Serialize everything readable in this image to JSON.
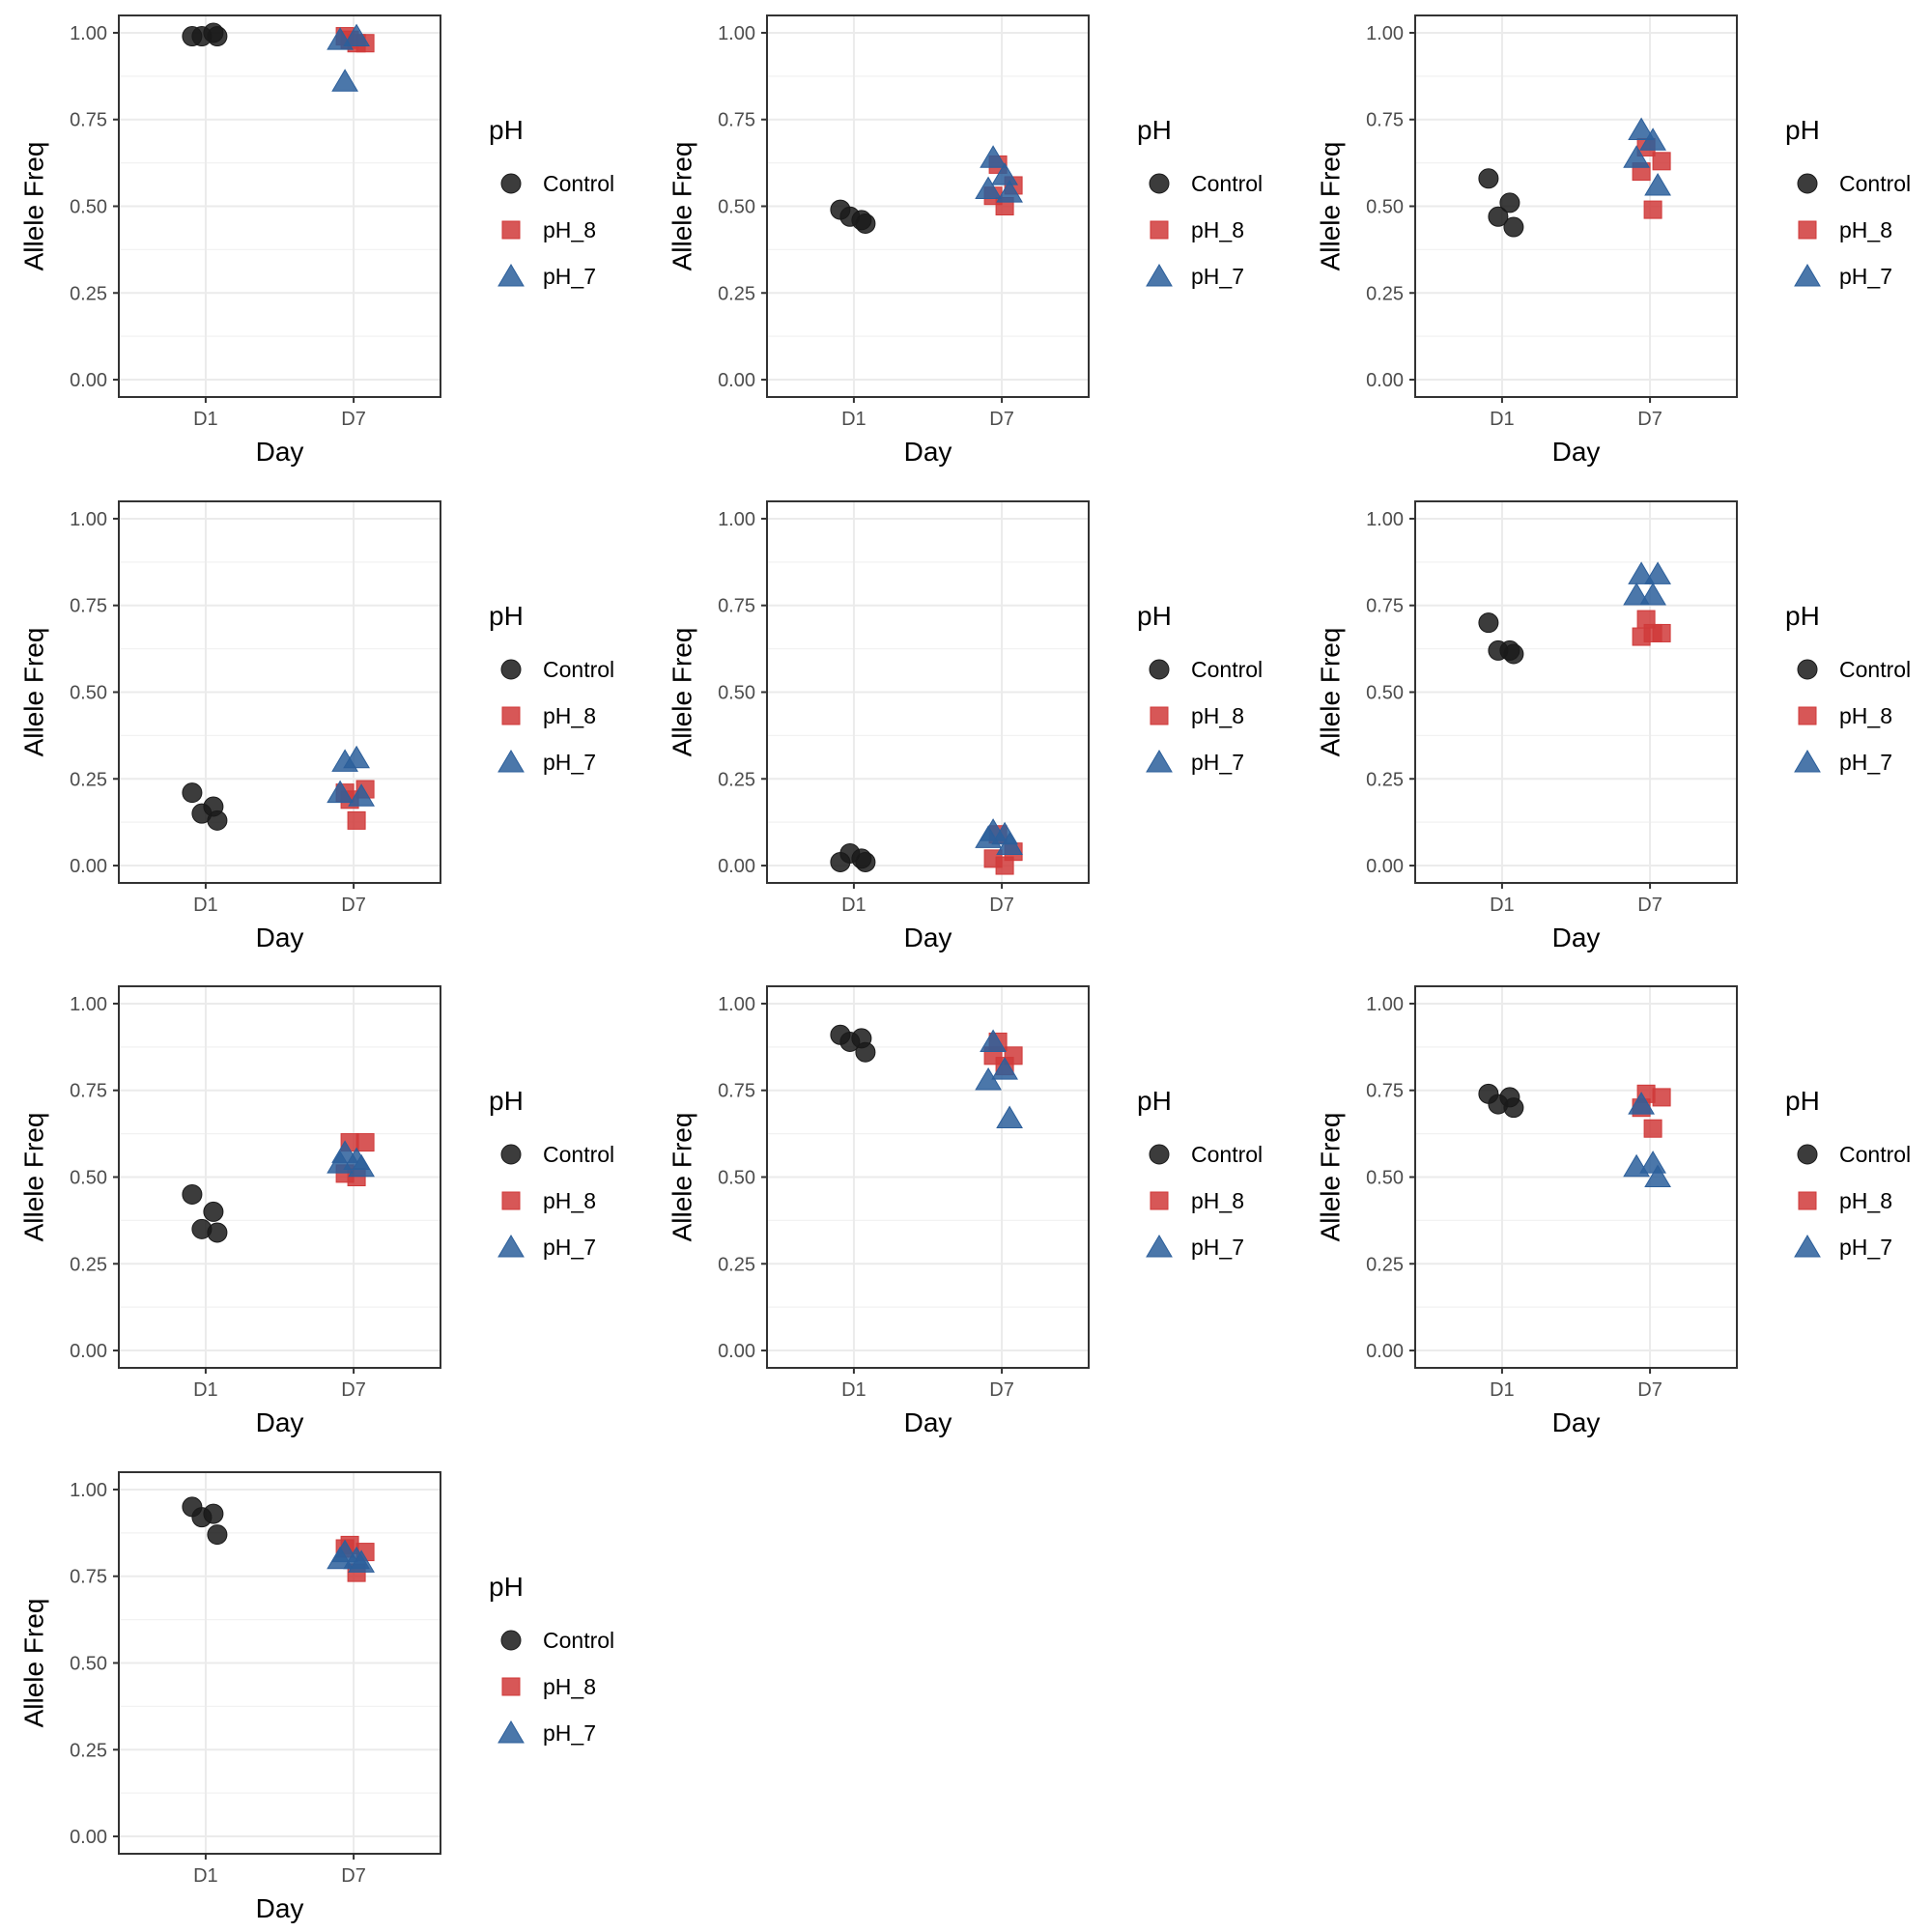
{
  "chart_data": [
    {
      "type": "scatter",
      "xlabel": "Day",
      "ylabel": "Allele Freq",
      "categories": [
        "D1",
        "D7"
      ],
      "ylim": [
        -0.05,
        1.05
      ],
      "yticks": [
        "0.00",
        "0.25",
        "0.50",
        "0.75",
        "1.00"
      ],
      "legend": {
        "title": "pH",
        "position": "right"
      },
      "series": [
        {
          "name": "Control",
          "color": "#1a1a1a",
          "shape": "circle",
          "points": [
            {
              "x": "D1",
              "y": 0.99
            },
            {
              "x": "D1",
              "y": 1.0
            },
            {
              "x": "D1",
              "y": 0.99
            },
            {
              "x": "D1",
              "y": 0.99
            }
          ]
        },
        {
          "name": "pH_8",
          "color": "#d03a3a",
          "shape": "square",
          "points": [
            {
              "x": "D7",
              "y": 0.98
            },
            {
              "x": "D7",
              "y": 0.97
            },
            {
              "x": "D7",
              "y": 0.99
            },
            {
              "x": "D7",
              "y": 0.97
            }
          ]
        },
        {
          "name": "pH_7",
          "color": "#2c5f9b",
          "shape": "triangle",
          "points": [
            {
              "x": "D7",
              "y": 0.86
            },
            {
              "x": "D7",
              "y": 0.99
            },
            {
              "x": "D7",
              "y": 0.98
            }
          ]
        }
      ]
    },
    {
      "type": "scatter",
      "xlabel": "Day",
      "ylabel": "Allele Freq",
      "categories": [
        "D1",
        "D7"
      ],
      "ylim": [
        -0.05,
        1.05
      ],
      "yticks": [
        "0.00",
        "0.25",
        "0.50",
        "0.75",
        "1.00"
      ],
      "legend": {
        "title": "pH",
        "position": "right"
      },
      "series": [
        {
          "name": "Control",
          "color": "#1a1a1a",
          "shape": "circle",
          "points": [
            {
              "x": "D1",
              "y": 0.49
            },
            {
              "x": "D1",
              "y": 0.46
            },
            {
              "x": "D1",
              "y": 0.47
            },
            {
              "x": "D1",
              "y": 0.45
            }
          ]
        },
        {
          "name": "pH_8",
          "color": "#d03a3a",
          "shape": "square",
          "points": [
            {
              "x": "D7",
              "y": 0.62
            },
            {
              "x": "D7",
              "y": 0.56
            },
            {
              "x": "D7",
              "y": 0.53
            },
            {
              "x": "D7",
              "y": 0.5
            }
          ]
        },
        {
          "name": "pH_7",
          "color": "#2c5f9b",
          "shape": "triangle",
          "points": [
            {
              "x": "D7",
              "y": 0.64
            },
            {
              "x": "D7",
              "y": 0.59
            },
            {
              "x": "D7",
              "y": 0.55
            },
            {
              "x": "D7",
              "y": 0.54
            }
          ]
        }
      ]
    },
    {
      "type": "scatter",
      "xlabel": "Day",
      "ylabel": "Allele Freq",
      "categories": [
        "D1",
        "D7"
      ],
      "ylim": [
        -0.05,
        1.05
      ],
      "yticks": [
        "0.00",
        "0.25",
        "0.50",
        "0.75",
        "1.00"
      ],
      "legend": {
        "title": "pH",
        "position": "right"
      },
      "series": [
        {
          "name": "Control",
          "color": "#1a1a1a",
          "shape": "circle",
          "points": [
            {
              "x": "D1",
              "y": 0.58
            },
            {
              "x": "D1",
              "y": 0.51
            },
            {
              "x": "D1",
              "y": 0.47
            },
            {
              "x": "D1",
              "y": 0.44
            }
          ]
        },
        {
          "name": "pH_8",
          "color": "#d03a3a",
          "shape": "square",
          "points": [
            {
              "x": "D7",
              "y": 0.67
            },
            {
              "x": "D7",
              "y": 0.63
            },
            {
              "x": "D7",
              "y": 0.6
            },
            {
              "x": "D7",
              "y": 0.49
            }
          ]
        },
        {
          "name": "pH_7",
          "color": "#2c5f9b",
          "shape": "triangle",
          "points": [
            {
              "x": "D7",
              "y": 0.72
            },
            {
              "x": "D7",
              "y": 0.69
            },
            {
              "x": "D7",
              "y": 0.64
            },
            {
              "x": "D7",
              "y": 0.56
            }
          ]
        }
      ]
    },
    {
      "type": "scatter",
      "xlabel": "Day",
      "ylabel": "Allele Freq",
      "categories": [
        "D1",
        "D7"
      ],
      "ylim": [
        -0.05,
        1.05
      ],
      "yticks": [
        "0.00",
        "0.25",
        "0.50",
        "0.75",
        "1.00"
      ],
      "legend": {
        "title": "pH",
        "position": "right"
      },
      "series": [
        {
          "name": "Control",
          "color": "#1a1a1a",
          "shape": "circle",
          "points": [
            {
              "x": "D1",
              "y": 0.21
            },
            {
              "x": "D1",
              "y": 0.17
            },
            {
              "x": "D1",
              "y": 0.15
            },
            {
              "x": "D1",
              "y": 0.13
            }
          ]
        },
        {
          "name": "pH_8",
          "color": "#d03a3a",
          "shape": "square",
          "points": [
            {
              "x": "D7",
              "y": 0.19
            },
            {
              "x": "D7",
              "y": 0.22
            },
            {
              "x": "D7",
              "y": 0.21
            },
            {
              "x": "D7",
              "y": 0.13
            }
          ]
        },
        {
          "name": "pH_7",
          "color": "#2c5f9b",
          "shape": "triangle",
          "points": [
            {
              "x": "D7",
              "y": 0.3
            },
            {
              "x": "D7",
              "y": 0.31
            },
            {
              "x": "D7",
              "y": 0.21
            },
            {
              "x": "D7",
              "y": 0.2
            }
          ]
        }
      ]
    },
    {
      "type": "scatter",
      "xlabel": "Day",
      "ylabel": "Allele Freq",
      "categories": [
        "D1",
        "D7"
      ],
      "ylim": [
        -0.05,
        1.05
      ],
      "yticks": [
        "0.00",
        "0.25",
        "0.50",
        "0.75",
        "1.00"
      ],
      "legend": {
        "title": "pH",
        "position": "right"
      },
      "series": [
        {
          "name": "Control",
          "color": "#1a1a1a",
          "shape": "circle",
          "points": [
            {
              "x": "D1",
              "y": 0.01
            },
            {
              "x": "D1",
              "y": 0.02
            },
            {
              "x": "D1",
              "y": 0.035
            },
            {
              "x": "D1",
              "y": 0.01
            }
          ]
        },
        {
          "name": "pH_8",
          "color": "#d03a3a",
          "shape": "square",
          "points": [
            {
              "x": "D7",
              "y": 0.09
            },
            {
              "x": "D7",
              "y": 0.04
            },
            {
              "x": "D7",
              "y": 0.02
            },
            {
              "x": "D7",
              "y": 0.0
            }
          ]
        },
        {
          "name": "pH_7",
          "color": "#2c5f9b",
          "shape": "triangle",
          "points": [
            {
              "x": "D7",
              "y": 0.1
            },
            {
              "x": "D7",
              "y": 0.09
            },
            {
              "x": "D7",
              "y": 0.08
            },
            {
              "x": "D7",
              "y": 0.06
            }
          ]
        }
      ]
    },
    {
      "type": "scatter",
      "xlabel": "Day",
      "ylabel": "Allele Freq",
      "categories": [
        "D1",
        "D7"
      ],
      "ylim": [
        -0.05,
        1.05
      ],
      "yticks": [
        "0.00",
        "0.25",
        "0.50",
        "0.75",
        "1.00"
      ],
      "legend": {
        "title": "pH",
        "position": "right"
      },
      "series": [
        {
          "name": "Control",
          "color": "#1a1a1a",
          "shape": "circle",
          "points": [
            {
              "x": "D1",
              "y": 0.7
            },
            {
              "x": "D1",
              "y": 0.62
            },
            {
              "x": "D1",
              "y": 0.62
            },
            {
              "x": "D1",
              "y": 0.61
            }
          ]
        },
        {
          "name": "pH_8",
          "color": "#d03a3a",
          "shape": "square",
          "points": [
            {
              "x": "D7",
              "y": 0.71
            },
            {
              "x": "D7",
              "y": 0.67
            },
            {
              "x": "D7",
              "y": 0.66
            },
            {
              "x": "D7",
              "y": 0.67
            }
          ]
        },
        {
          "name": "pH_7",
          "color": "#2c5f9b",
          "shape": "triangle",
          "points": [
            {
              "x": "D7",
              "y": 0.84
            },
            {
              "x": "D7",
              "y": 0.78
            },
            {
              "x": "D7",
              "y": 0.78
            },
            {
              "x": "D7",
              "y": 0.84
            }
          ]
        }
      ]
    },
    {
      "type": "scatter",
      "xlabel": "Day",
      "ylabel": "Allele Freq",
      "categories": [
        "D1",
        "D7"
      ],
      "ylim": [
        -0.05,
        1.05
      ],
      "yticks": [
        "0.00",
        "0.25",
        "0.50",
        "0.75",
        "1.00"
      ],
      "legend": {
        "title": "pH",
        "position": "right"
      },
      "series": [
        {
          "name": "Control",
          "color": "#1a1a1a",
          "shape": "circle",
          "points": [
            {
              "x": "D1",
              "y": 0.45
            },
            {
              "x": "D1",
              "y": 0.4
            },
            {
              "x": "D1",
              "y": 0.35
            },
            {
              "x": "D1",
              "y": 0.34
            }
          ]
        },
        {
          "name": "pH_8",
          "color": "#d03a3a",
          "shape": "square",
          "points": [
            {
              "x": "D7",
              "y": 0.6
            },
            {
              "x": "D7",
              "y": 0.6
            },
            {
              "x": "D7",
              "y": 0.51
            },
            {
              "x": "D7",
              "y": 0.5
            }
          ]
        },
        {
          "name": "pH_7",
          "color": "#2c5f9b",
          "shape": "triangle",
          "points": [
            {
              "x": "D7",
              "y": 0.57
            },
            {
              "x": "D7",
              "y": 0.55
            },
            {
              "x": "D7",
              "y": 0.54
            },
            {
              "x": "D7",
              "y": 0.53
            }
          ]
        }
      ]
    },
    {
      "type": "scatter",
      "xlabel": "Day",
      "ylabel": "Allele Freq",
      "categories": [
        "D1",
        "D7"
      ],
      "ylim": [
        -0.05,
        1.05
      ],
      "yticks": [
        "0.00",
        "0.25",
        "0.50",
        "0.75",
        "1.00"
      ],
      "legend": {
        "title": "pH",
        "position": "right"
      },
      "series": [
        {
          "name": "Control",
          "color": "#1a1a1a",
          "shape": "circle",
          "points": [
            {
              "x": "D1",
              "y": 0.91
            },
            {
              "x": "D1",
              "y": 0.9
            },
            {
              "x": "D1",
              "y": 0.89
            },
            {
              "x": "D1",
              "y": 0.86
            }
          ]
        },
        {
          "name": "pH_8",
          "color": "#d03a3a",
          "shape": "square",
          "points": [
            {
              "x": "D7",
              "y": 0.89
            },
            {
              "x": "D7",
              "y": 0.85
            },
            {
              "x": "D7",
              "y": 0.85
            },
            {
              "x": "D7",
              "y": 0.82
            }
          ]
        },
        {
          "name": "pH_7",
          "color": "#2c5f9b",
          "shape": "triangle",
          "points": [
            {
              "x": "D7",
              "y": 0.89
            },
            {
              "x": "D7",
              "y": 0.81
            },
            {
              "x": "D7",
              "y": 0.78
            },
            {
              "x": "D7",
              "y": 0.67
            }
          ]
        }
      ]
    },
    {
      "type": "scatter",
      "xlabel": "Day",
      "ylabel": "Allele Freq",
      "categories": [
        "D1",
        "D7"
      ],
      "ylim": [
        -0.05,
        1.05
      ],
      "yticks": [
        "0.00",
        "0.25",
        "0.50",
        "0.75",
        "1.00"
      ],
      "legend": {
        "title": "pH",
        "position": "right"
      },
      "series": [
        {
          "name": "Control",
          "color": "#1a1a1a",
          "shape": "circle",
          "points": [
            {
              "x": "D1",
              "y": 0.74
            },
            {
              "x": "D1",
              "y": 0.73
            },
            {
              "x": "D1",
              "y": 0.71
            },
            {
              "x": "D1",
              "y": 0.7
            }
          ]
        },
        {
          "name": "pH_8",
          "color": "#d03a3a",
          "shape": "square",
          "points": [
            {
              "x": "D7",
              "y": 0.74
            },
            {
              "x": "D7",
              "y": 0.73
            },
            {
              "x": "D7",
              "y": 0.7
            },
            {
              "x": "D7",
              "y": 0.64
            }
          ]
        },
        {
          "name": "pH_7",
          "color": "#2c5f9b",
          "shape": "triangle",
          "points": [
            {
              "x": "D7",
              "y": 0.71
            },
            {
              "x": "D7",
              "y": 0.54
            },
            {
              "x": "D7",
              "y": 0.53
            },
            {
              "x": "D7",
              "y": 0.5
            }
          ]
        }
      ]
    },
    {
      "type": "scatter",
      "xlabel": "Day",
      "ylabel": "Allele Freq",
      "categories": [
        "D1",
        "D7"
      ],
      "ylim": [
        -0.05,
        1.05
      ],
      "yticks": [
        "0.00",
        "0.25",
        "0.50",
        "0.75",
        "1.00"
      ],
      "legend": {
        "title": "pH",
        "position": "right"
      },
      "series": [
        {
          "name": "Control",
          "color": "#1a1a1a",
          "shape": "circle",
          "points": [
            {
              "x": "D1",
              "y": 0.95
            },
            {
              "x": "D1",
              "y": 0.93
            },
            {
              "x": "D1",
              "y": 0.92
            },
            {
              "x": "D1",
              "y": 0.87
            }
          ]
        },
        {
          "name": "pH_8",
          "color": "#d03a3a",
          "shape": "square",
          "points": [
            {
              "x": "D7",
              "y": 0.84
            },
            {
              "x": "D7",
              "y": 0.82
            },
            {
              "x": "D7",
              "y": 0.83
            },
            {
              "x": "D7",
              "y": 0.76
            }
          ]
        },
        {
          "name": "pH_7",
          "color": "#2c5f9b",
          "shape": "triangle",
          "points": [
            {
              "x": "D7",
              "y": 0.82
            },
            {
              "x": "D7",
              "y": 0.8
            },
            {
              "x": "D7",
              "y": 0.8
            },
            {
              "x": "D7",
              "y": 0.79
            }
          ]
        }
      ]
    }
  ]
}
